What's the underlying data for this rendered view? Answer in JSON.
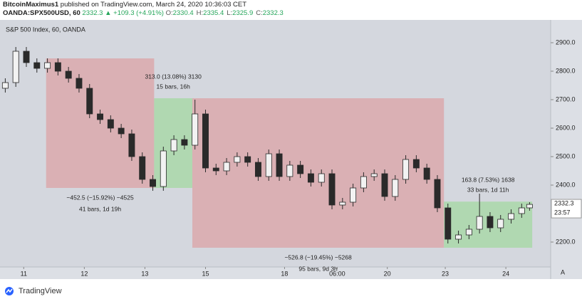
{
  "header": {
    "author": "BitcoinMaximus1",
    "published": "published on TradingView.com, March 24, 2020 10:36:03 CET",
    "symbol": "OANDA:SPX500USD, 60",
    "last": "2332.3",
    "change": "▲ +109.3 (+4.91%)",
    "ohlc": [
      {
        "label": "O:",
        "value": "2330.4"
      },
      {
        "label": "H:",
        "value": "2335.4"
      },
      {
        "label": "L:",
        "value": "2325.9"
      },
      {
        "label": "C:",
        "value": "2332.3"
      }
    ]
  },
  "footer": {
    "brand": "TradingView"
  },
  "chart_data": {
    "type": "candlestick",
    "title": "S&P 500 Index, 60, OANDA",
    "x": [
      2,
      6,
      10,
      14,
      18,
      22,
      26,
      30,
      34,
      38,
      42,
      46,
      50,
      54,
      58,
      62,
      66,
      70,
      74,
      78,
      82,
      86,
      90,
      94,
      98,
      102,
      106,
      110,
      114,
      118,
      122,
      126,
      130,
      134,
      138,
      142,
      146,
      150,
      154,
      158,
      162,
      166,
      170,
      174,
      178,
      182,
      186,
      190,
      194,
      198,
      201
    ],
    "open": [
      2740,
      2760,
      2870,
      2830,
      2810,
      2830,
      2800,
      2775,
      2740,
      2650,
      2630,
      2600,
      2580,
      2500,
      2420,
      2395,
      2520,
      2560,
      2540,
      2650,
      2460,
      2450,
      2480,
      2500,
      2480,
      2430,
      2510,
      2430,
      2470,
      2440,
      2410,
      2440,
      2330,
      2340,
      2390,
      2430,
      2440,
      2360,
      2420,
      2490,
      2460,
      2420,
      2320,
      2210,
      2225,
      2245,
      2290,
      2250,
      2280,
      2300,
      2320
    ],
    "high": [
      2775,
      2885,
      2885,
      2845,
      2845,
      2845,
      2815,
      2790,
      2755,
      2665,
      2645,
      2615,
      2595,
      2515,
      2435,
      2535,
      2575,
      2575,
      2700,
      2665,
      2475,
      2495,
      2515,
      2515,
      2495,
      2525,
      2525,
      2485,
      2485,
      2455,
      2455,
      2455,
      2355,
      2405,
      2445,
      2455,
      2455,
      2435,
      2505,
      2505,
      2475,
      2435,
      2335,
      2240,
      2260,
      2370,
      2305,
      2295,
      2315,
      2335,
      2340
    ],
    "low": [
      2725,
      2745,
      2815,
      2795,
      2795,
      2785,
      2760,
      2725,
      2635,
      2615,
      2585,
      2565,
      2485,
      2405,
      2380,
      2380,
      2505,
      2525,
      2525,
      2445,
      2435,
      2435,
      2465,
      2465,
      2415,
      2415,
      2415,
      2415,
      2425,
      2395,
      2395,
      2315,
      2315,
      2325,
      2375,
      2415,
      2345,
      2345,
      2405,
      2445,
      2405,
      2305,
      2195,
      2195,
      2210,
      2230,
      2235,
      2235,
      2265,
      2285,
      2310
    ],
    "close": [
      2760,
      2870,
      2830,
      2810,
      2830,
      2800,
      2775,
      2740,
      2650,
      2630,
      2600,
      2580,
      2500,
      2420,
      2395,
      2520,
      2560,
      2540,
      2650,
      2460,
      2450,
      2480,
      2500,
      2480,
      2430,
      2510,
      2430,
      2470,
      2440,
      2410,
      2440,
      2330,
      2340,
      2390,
      2430,
      2440,
      2360,
      2420,
      2490,
      2460,
      2420,
      2320,
      2210,
      2225,
      2245,
      2290,
      2250,
      2280,
      2300,
      2320,
      2332.3
    ],
    "up_color": "#f2f2f2",
    "down_color": "#2a2a2a",
    "wick_color": "#2a2a2a",
    "xlim": [
      0,
      209
    ],
    "xticks": [
      {
        "value": 9,
        "label": "11"
      },
      {
        "value": 32,
        "label": "12"
      },
      {
        "value": 55,
        "label": "13"
      },
      {
        "value": 78,
        "label": "15"
      },
      {
        "value": 108,
        "label": "18"
      },
      {
        "value": 128,
        "label": "06:00"
      },
      {
        "value": 147,
        "label": "20"
      },
      {
        "value": 169,
        "label": "23"
      },
      {
        "value": 192,
        "label": "24"
      }
    ],
    "ylim": [
      2112.5,
      2980
    ],
    "yticks": [
      {
        "value": 2200,
        "label": "2200.0"
      },
      {
        "value": 2400,
        "label": "2400.0"
      },
      {
        "value": 2500,
        "label": "2500.0"
      },
      {
        "value": 2600,
        "label": "2600.0"
      },
      {
        "value": 2700,
        "label": "2700.0"
      },
      {
        "value": 2800,
        "label": "2800.0"
      },
      {
        "value": 2900,
        "label": "2900.0"
      }
    ],
    "last_price": 2332.3,
    "countdown": "23:57",
    "scale_button": "A",
    "annotations": [
      {
        "x": [
          17.5,
          58.5
        ],
        "y": [
          2845,
          2390
        ],
        "color": "#dba9ad",
        "label_side": "bottom",
        "labels": [
          "−452.5 (−15.92%) −4525",
          "41 bars, 1d 19h"
        ]
      },
      {
        "x": [
          58.5,
          73
        ],
        "y": [
          2390,
          2705
        ],
        "color": "#a9d8a9",
        "label_side": "top",
        "labels": [
          "313.0 (13.08%) 3130",
          "15 bars, 16h"
        ]
      },
      {
        "x": [
          73,
          168.5
        ],
        "y": [
          2705,
          2180
        ],
        "color": "#dba9ad",
        "label_side": "bottom",
        "labels": [
          "−526.8 (−19.45%) −5268",
          "95 bars, 9d 3h"
        ]
      },
      {
        "x": [
          168.5,
          202
        ],
        "y": [
          2180,
          2342
        ],
        "color": "#a9d8a9",
        "label_side": "top",
        "labels": [
          "163.8 (7.53%) 1638",
          "33 bars, 1d 11h"
        ]
      }
    ]
  }
}
